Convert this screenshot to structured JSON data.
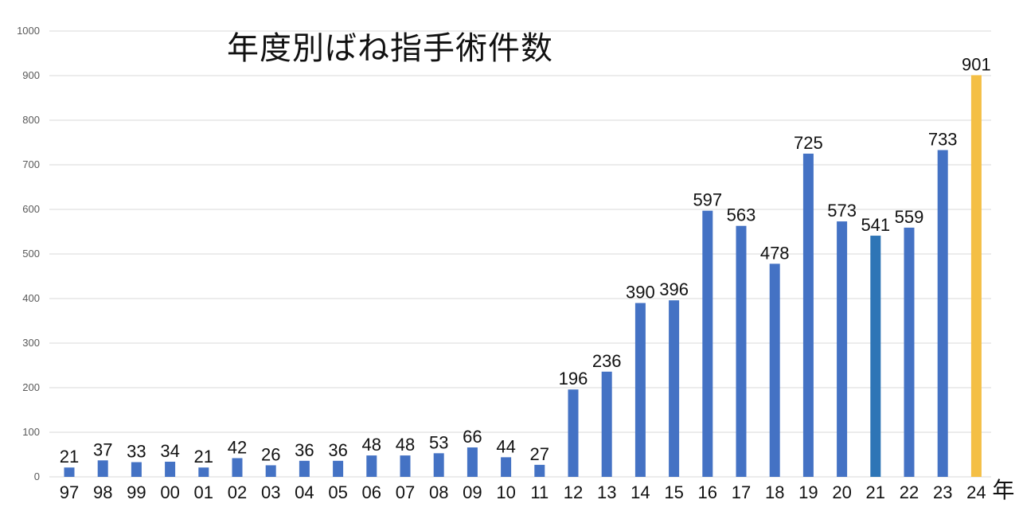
{
  "chart_data": {
    "type": "bar",
    "title": "年度別ばね指手術件数",
    "x_unit": "年",
    "categories": [
      "97",
      "98",
      "99",
      "00",
      "01",
      "02",
      "03",
      "04",
      "05",
      "06",
      "07",
      "08",
      "09",
      "10",
      "11",
      "12",
      "13",
      "14",
      "15",
      "16",
      "17",
      "18",
      "19",
      "20",
      "21",
      "22",
      "23",
      "24"
    ],
    "values": [
      21,
      37,
      33,
      34,
      21,
      42,
      26,
      36,
      36,
      48,
      48,
      53,
      66,
      44,
      27,
      196,
      236,
      390,
      396,
      597,
      563,
      478,
      725,
      573,
      541,
      559,
      733,
      901
    ],
    "ylim": [
      0,
      1000
    ],
    "yticks": [
      0,
      100,
      200,
      300,
      400,
      500,
      600,
      700,
      800,
      900,
      1000
    ],
    "grid": true,
    "legend": "none",
    "colors": {
      "default": "#4472C4",
      "highlight_21": "#2E75B6",
      "highlight_24": "#F4BF45",
      "grid": "#D9D9D9"
    },
    "bar_colors": {
      "21": "#2E75B6",
      "24": "#F4BF45"
    }
  }
}
